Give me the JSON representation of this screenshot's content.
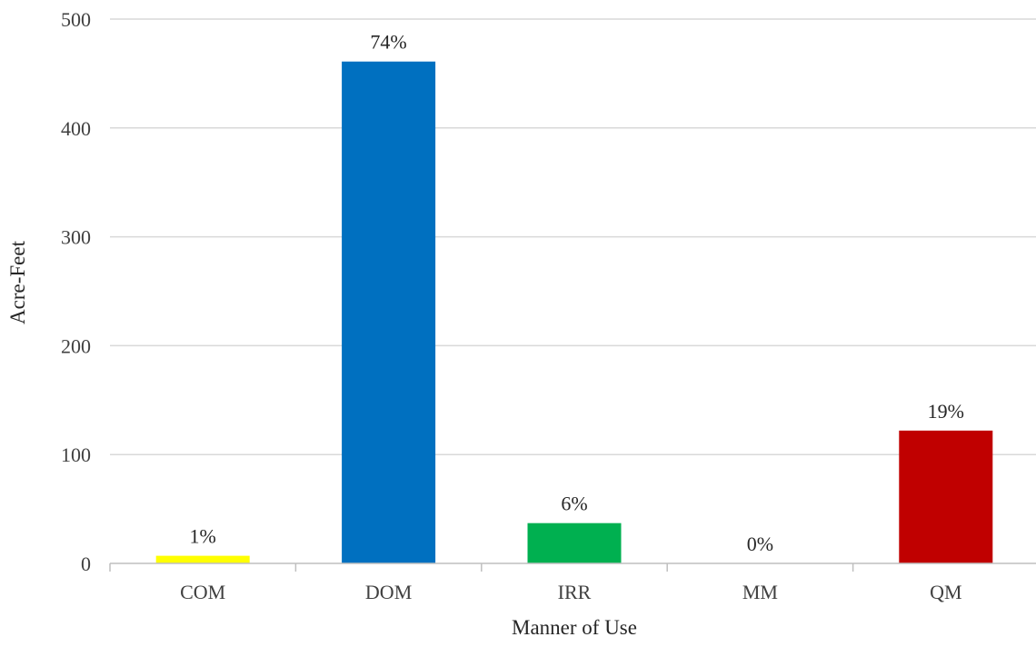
{
  "chart_data": {
    "type": "bar",
    "categories": [
      "COM",
      "DOM",
      "IRR",
      "MM",
      "QM"
    ],
    "values": [
      7,
      461,
      37,
      0,
      122
    ],
    "data_labels": [
      "1%",
      "74%",
      "6%",
      "0%",
      "19%"
    ],
    "colors": [
      "#FFFF00",
      "#0070C0",
      "#00B050",
      "#808080",
      "#C00000"
    ],
    "title": "",
    "xlabel": "Manner of Use",
    "ylabel": "Acre-Feet",
    "ylim": [
      0,
      500
    ],
    "yticks": [
      "0",
      "100",
      "200",
      "300",
      "400",
      "500"
    ],
    "grid": true,
    "legend": "none"
  }
}
